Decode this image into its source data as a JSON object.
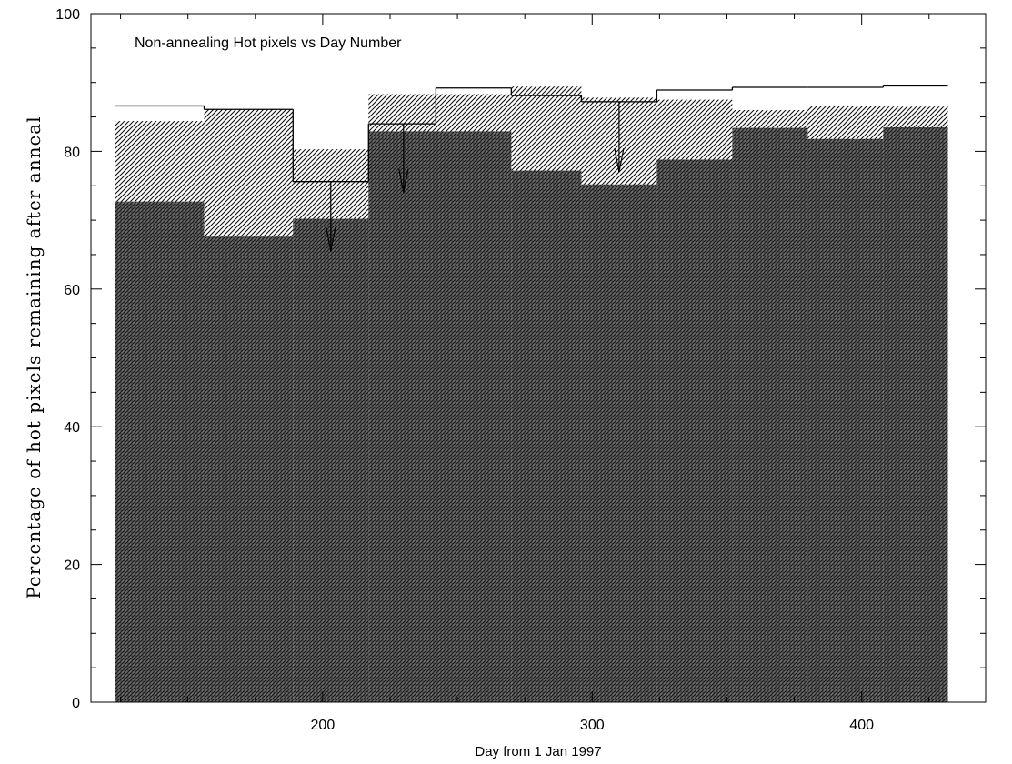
{
  "chart_data": {
    "type": "bar",
    "title": "Non-annealing Hot pixels vs Day Number",
    "xlabel": "Day from 1 Jan 1997",
    "ylabel": "Percentage of hot pixels remaining after anneal",
    "xlim": [
      114,
      446
    ],
    "ylim": [
      0,
      100
    ],
    "x_ticks": [
      200,
      300,
      400
    ],
    "y_ticks": [
      0,
      20,
      40,
      60,
      80,
      100
    ],
    "grid": false,
    "series": [
      {
        "style": "dense-crosshatch",
        "bins": [
          {
            "x0": 123,
            "x1": 156,
            "value": 72.7
          },
          {
            "x0": 156,
            "x1": 189,
            "value": 67.6
          },
          {
            "x0": 189,
            "x1": 217,
            "value": 70.2
          },
          {
            "x0": 217,
            "x1": 270,
            "value": 82.9
          },
          {
            "x0": 270,
            "x1": 296,
            "value": 77.2
          },
          {
            "x0": 296,
            "x1": 324,
            "value": 75.2
          },
          {
            "x0": 324,
            "x1": 352,
            "value": 78.8
          },
          {
            "x0": 352,
            "x1": 380,
            "value": 83.4
          },
          {
            "x0": 380,
            "x1": 408,
            "value": 81.8
          },
          {
            "x0": 408,
            "x1": 432,
            "value": 83.5
          }
        ]
      },
      {
        "style": "diagonal-hatch",
        "bins": [
          {
            "x0": 123,
            "x1": 156,
            "value": 84.4
          },
          {
            "x0": 156,
            "x1": 189,
            "value": 86.1
          },
          {
            "x0": 189,
            "x1": 217,
            "value": 80.3
          },
          {
            "x0": 217,
            "x1": 270,
            "value": 88.3
          },
          {
            "x0": 270,
            "x1": 296,
            "value": 89.4
          },
          {
            "x0": 296,
            "x1": 324,
            "value": 87.8
          },
          {
            "x0": 324,
            "x1": 352,
            "value": 87.5
          },
          {
            "x0": 352,
            "x1": 380,
            "value": 86.0
          },
          {
            "x0": 380,
            "x1": 408,
            "value": 86.6
          },
          {
            "x0": 408,
            "x1": 432,
            "value": 86.5
          }
        ]
      },
      {
        "style": "step-line",
        "bins": [
          {
            "x0": 123,
            "x1": 156,
            "value": 86.6
          },
          {
            "x0": 156,
            "x1": 189,
            "value": 86.1
          },
          {
            "x0": 189,
            "x1": 217,
            "value": 75.6
          },
          {
            "x0": 217,
            "x1": 242,
            "value": 84.0
          },
          {
            "x0": 242,
            "x1": 270,
            "value": 89.2
          },
          {
            "x0": 270,
            "x1": 296,
            "value": 88.1
          },
          {
            "x0": 296,
            "x1": 324,
            "value": 87.2
          },
          {
            "x0": 324,
            "x1": 352,
            "value": 88.9
          },
          {
            "x0": 352,
            "x1": 380,
            "value": 89.3
          },
          {
            "x0": 380,
            "x1": 408,
            "value": 89.3
          },
          {
            "x0": 408,
            "x1": 432,
            "value": 89.5
          }
        ]
      }
    ],
    "upper_limit_arrows": [
      {
        "x": 203,
        "from": 75.6,
        "to": 65.5
      },
      {
        "x": 230,
        "from": 84.0,
        "to": 74.0
      },
      {
        "x": 310,
        "from": 87.2,
        "to": 77.0
      }
    ]
  }
}
